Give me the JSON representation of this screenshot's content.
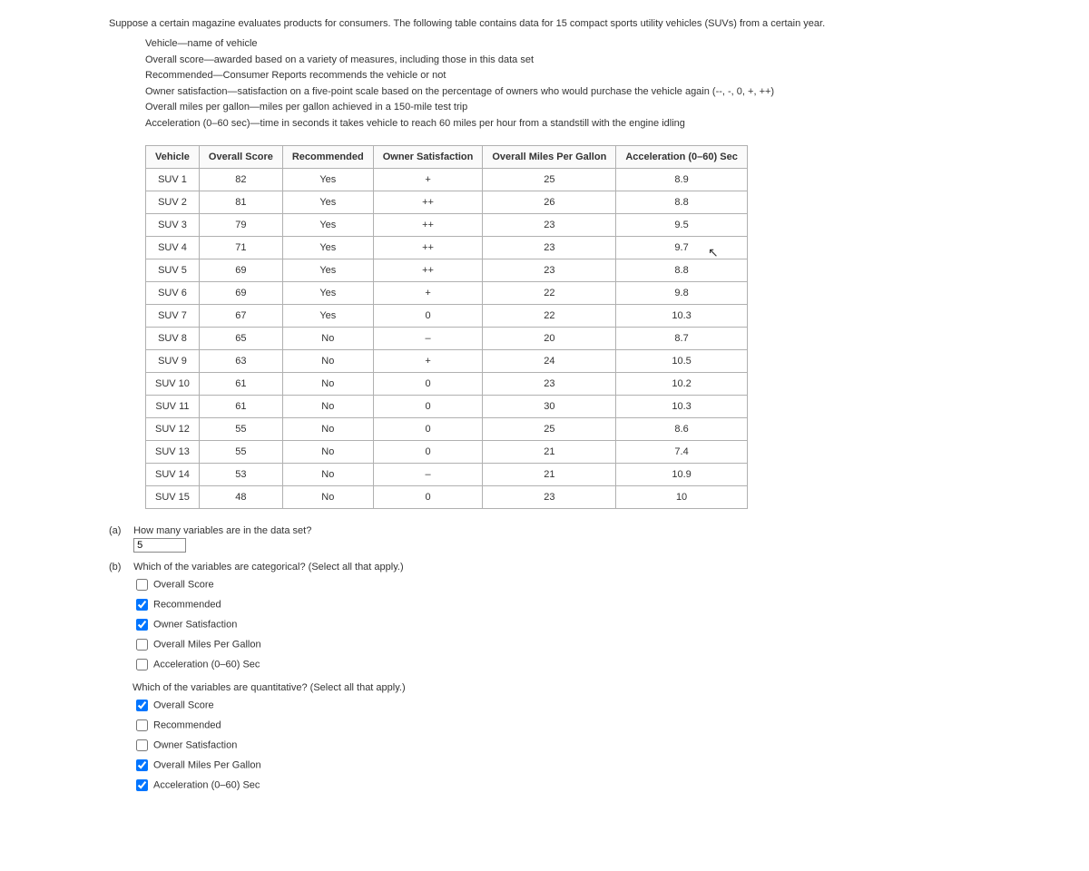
{
  "intro": "Suppose a certain magazine evaluates products for consumers. The following table contains data for 15 compact sports utility vehicles (SUVs) from a certain year.",
  "definitions": [
    "Vehicle—name of vehicle",
    "Overall score—awarded based on a variety of measures, including those in this data set",
    "Recommended—Consumer Reports recommends the vehicle or not",
    "Owner satisfaction—satisfaction on a five-point scale based on the percentage of owners who would purchase the vehicle again (--, -, 0, +, ++)",
    "Overall miles per gallon—miles per gallon achieved in a 150-mile test trip",
    "Acceleration (0–60 sec)—time in seconds it takes vehicle to reach 60 miles per hour from a standstill with the engine idling"
  ],
  "table": {
    "columns": [
      "Vehicle",
      "Overall Score",
      "Recommended",
      "Owner Satisfaction",
      "Overall Miles Per Gallon",
      "Acceleration (0–60) Sec"
    ],
    "rows": [
      [
        "SUV 1",
        "82",
        "Yes",
        "+",
        "25",
        "8.9"
      ],
      [
        "SUV 2",
        "81",
        "Yes",
        "++",
        "26",
        "8.8"
      ],
      [
        "SUV 3",
        "79",
        "Yes",
        "++",
        "23",
        "9.5"
      ],
      [
        "SUV 4",
        "71",
        "Yes",
        "++",
        "23",
        "9.7"
      ],
      [
        "SUV 5",
        "69",
        "Yes",
        "++",
        "23",
        "8.8"
      ],
      [
        "SUV 6",
        "69",
        "Yes",
        "+",
        "22",
        "9.8"
      ],
      [
        "SUV 7",
        "67",
        "Yes",
        "0",
        "22",
        "10.3"
      ],
      [
        "SUV 8",
        "65",
        "No",
        "–",
        "20",
        "8.7"
      ],
      [
        "SUV 9",
        "63",
        "No",
        "+",
        "24",
        "10.5"
      ],
      [
        "SUV 10",
        "61",
        "No",
        "0",
        "23",
        "10.2"
      ],
      [
        "SUV 11",
        "61",
        "No",
        "0",
        "30",
        "10.3"
      ],
      [
        "SUV 12",
        "55",
        "No",
        "0",
        "25",
        "8.6"
      ],
      [
        "SUV 13",
        "55",
        "No",
        "0",
        "21",
        "7.4"
      ],
      [
        "SUV 14",
        "53",
        "No",
        "–",
        "21",
        "10.9"
      ],
      [
        "SUV 15",
        "48",
        "No",
        "0",
        "23",
        "10"
      ]
    ]
  },
  "qa": {
    "label": "(a)",
    "text": "How many variables are in the data set?",
    "value": "5"
  },
  "qb": {
    "label": "(b)",
    "text": "Which of the variables are categorical? (Select all that apply.)",
    "options": [
      {
        "label": "Overall Score",
        "checked": false
      },
      {
        "label": "Recommended",
        "checked": true
      },
      {
        "label": "Owner Satisfaction",
        "checked": true
      },
      {
        "label": "Overall Miles Per Gallon",
        "checked": false
      },
      {
        "label": "Acceleration (0–60) Sec",
        "checked": false
      }
    ]
  },
  "qb2": {
    "text": "Which of the variables are quantitative? (Select all that apply.)",
    "options": [
      {
        "label": "Overall Score",
        "checked": true
      },
      {
        "label": "Recommended",
        "checked": false
      },
      {
        "label": "Owner Satisfaction",
        "checked": false
      },
      {
        "label": "Overall Miles Per Gallon",
        "checked": true
      },
      {
        "label": "Acceleration (0–60) Sec",
        "checked": true
      }
    ]
  }
}
